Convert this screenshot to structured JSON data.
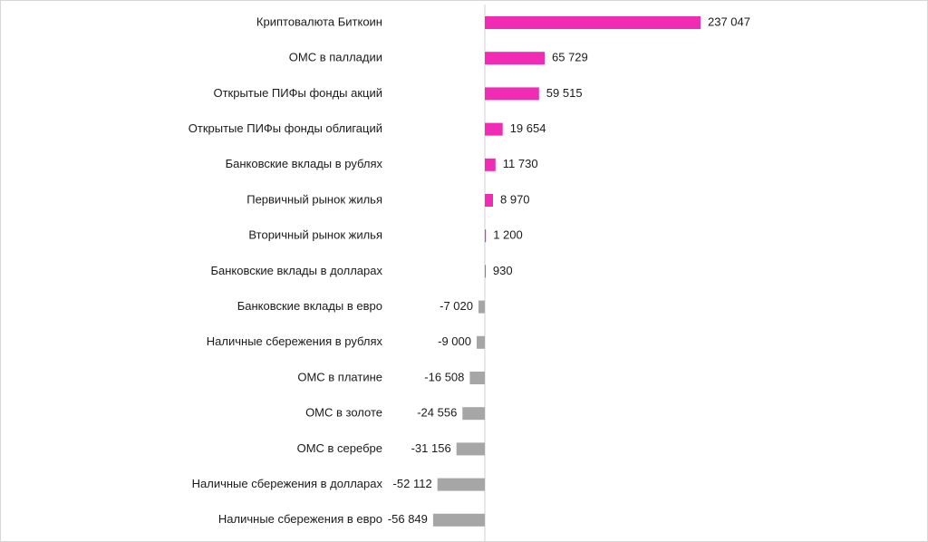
{
  "chart_data": {
    "type": "bar",
    "orientation": "horizontal",
    "categories": [
      "Криптовалюта Биткоин",
      "ОМС в палладии",
      "Открытые ПИФы фонды акций",
      "Открытые ПИФы фонды облигаций",
      "Банковские вклады в рублях",
      "Первичный рынок жилья",
      "Вторичный рынок жилья",
      "Банковские вклады в долларах",
      "Банковские вклады в евро",
      "Наличные сбережения в рублях",
      "ОМС в платине",
      "ОМС в золоте",
      "ОМС в серебре",
      "Наличные сбережения в долларах",
      "Наличные сбережения в евро"
    ],
    "values": [
      237047,
      65729,
      59515,
      19654,
      11730,
      8970,
      1200,
      930,
      -7020,
      -9000,
      -16508,
      -24556,
      -31156,
      -52112,
      -56849
    ],
    "value_labels": [
      "237 047",
      "65 729",
      "59 515",
      "19 654",
      "11 730",
      "8 970",
      "1 200",
      "930",
      "-7 020",
      "-9 000",
      "-16 508",
      "-24 556",
      "-31 156",
      "-52 112",
      "-56 849"
    ],
    "colors": {
      "positive": "#f02cb4",
      "negative": "#a6a6a6",
      "axis": "#d0d0d0"
    },
    "grid": false
  }
}
